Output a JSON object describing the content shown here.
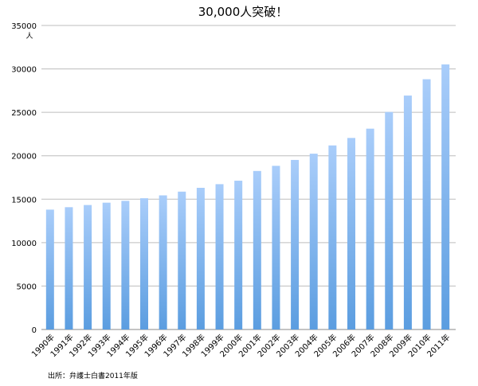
{
  "chart_data": {
    "type": "bar",
    "title": "30,000人突破！",
    "ylabel": "人",
    "xlabel": "",
    "ylim": [
      0,
      35000
    ],
    "yticks": [
      0,
      5000,
      10000,
      15000,
      20000,
      25000,
      30000,
      35000
    ],
    "grid": true,
    "categories": [
      "1990年",
      "1991年",
      "1992年",
      "1993年",
      "1994年",
      "1995年",
      "1996年",
      "1997年",
      "1998年",
      "1999年",
      "2000年",
      "2001年",
      "2002年",
      "2003年",
      "2004年",
      "2005年",
      "2006年",
      "2007年",
      "2008年",
      "2009年",
      "2010年",
      "2011年"
    ],
    "values": [
      13800,
      14080,
      14330,
      14600,
      14810,
      15110,
      15440,
      15870,
      16310,
      16730,
      17130,
      18250,
      18840,
      19520,
      20240,
      21190,
      22050,
      23120,
      25040,
      26930,
      28810,
      30520
    ],
    "bar_color_top": "#a9cdfa",
    "bar_color_bottom": "#5b9de0"
  },
  "source": "出所：弁護士白書2011年版"
}
